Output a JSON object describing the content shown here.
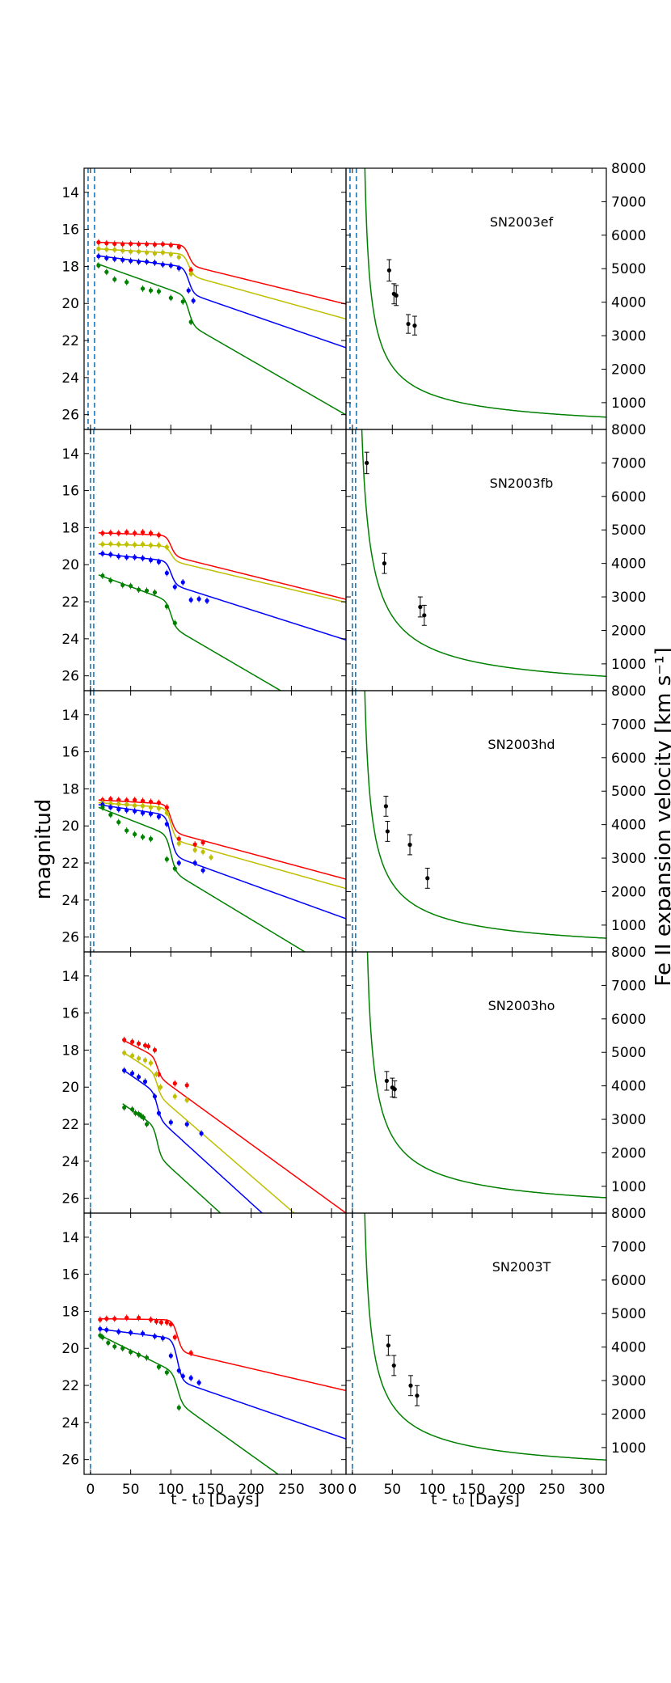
{
  "figure": {
    "y_left_label": "magnitud",
    "y_right_label": "Fe II expansion velocity [km s⁻¹]",
    "x_label_left": "t - t₀ [Days]",
    "x_label_right": "t - t₀ [Days]"
  },
  "chart_data": {
    "type": "line",
    "x_ticks": [
      0,
      50,
      100,
      150,
      200,
      250,
      300
    ],
    "x_range": [
      -8,
      318
    ],
    "mag_ticks": [
      14,
      16,
      18,
      20,
      22,
      24,
      26
    ],
    "mag_range": [
      12.7,
      26.8
    ],
    "vel_ticks": [
      1000,
      2000,
      3000,
      4000,
      5000,
      6000,
      7000,
      8000
    ],
    "vel_range": [
      200,
      8000
    ],
    "colors": {
      "B": "#008000",
      "V": "#0000ff",
      "R": "#bfbf00",
      "I": "#ff0000",
      "vel": "#008000",
      "tline": "#1f77b4"
    },
    "panels": [
      {
        "name": "SN2003ef",
        "tlines": [
          -3,
          5
        ],
        "lc_models": [
          {
            "band": "I",
            "start": 8,
            "m0": 16.7,
            "slope1": 0.0012,
            "tp": 122,
            "drop": 1.1,
            "w": 3,
            "slope2": 0.0095
          },
          {
            "band": "R",
            "start": 8,
            "m0": 17.05,
            "slope1": 0.0025,
            "tp": 122,
            "drop": 1.15,
            "w": 3,
            "slope2": 0.0095
          },
          {
            "band": "V",
            "start": 8,
            "m0": 17.42,
            "slope1": 0.0055,
            "tp": 122,
            "drop": 1.4,
            "w": 3,
            "slope2": 0.0095
          },
          {
            "band": "B",
            "start": 8,
            "m0": 17.85,
            "slope1": 0.0155,
            "tp": 122,
            "drop": 1.5,
            "w": 3,
            "slope2": 0.0095
          }
        ],
        "lc_points": [
          {
            "band": "I",
            "t": [
              10,
              20,
              30,
              40,
              50,
              60,
              70,
              80,
              90,
              100,
              110,
              125
            ],
            "mag": [
              16.7,
              16.75,
              16.78,
              16.8,
              16.78,
              16.8,
              16.8,
              16.82,
              16.8,
              16.85,
              16.95,
              18.2
            ]
          },
          {
            "band": "R",
            "t": [
              10,
              20,
              30,
              40,
              50,
              60,
              70,
              80,
              90,
              100,
              110,
              125
            ],
            "mag": [
              17.05,
              17.08,
              17.1,
              17.15,
              17.2,
              17.2,
              17.25,
              17.3,
              17.25,
              17.35,
              17.5,
              18.4
            ]
          },
          {
            "band": "V",
            "t": [
              10,
              20,
              30,
              40,
              50,
              60,
              70,
              80,
              90,
              100,
              110,
              122,
              128
            ],
            "mag": [
              17.45,
              17.55,
              17.6,
              17.65,
              17.7,
              17.75,
              17.75,
              17.8,
              17.9,
              17.95,
              18.1,
              19.3,
              19.85
            ]
          },
          {
            "band": "B",
            "t": [
              10,
              20,
              30,
              45,
              65,
              75,
              85,
              100,
              115,
              125
            ],
            "mag": [
              17.95,
              18.3,
              18.7,
              18.85,
              19.2,
              19.3,
              19.35,
              19.7,
              19.9,
              21.0
            ]
          }
        ],
        "vel_model": {
          "A": 10800,
          "n": 0.63,
          "t0": 11
        },
        "vel_points": {
          "t": [
            46,
            52,
            55,
            70,
            78
          ],
          "v": [
            4950,
            4250,
            4200,
            3350,
            3300
          ],
          "err": [
            320,
            300,
            300,
            280,
            280
          ]
        }
      },
      {
        "name": "SN2003fb",
        "tlines": [
          0,
          4
        ],
        "lc_models": [
          {
            "band": "I",
            "start": 10,
            "m0": 18.28,
            "slope1": 0.0015,
            "tp": 100,
            "drop": 1.1,
            "w": 3,
            "slope2": 0.0093
          },
          {
            "band": "R",
            "start": 10,
            "m0": 18.9,
            "slope1": 0.001,
            "tp": 100,
            "drop": 0.8,
            "w": 3,
            "slope2": 0.0093
          },
          {
            "band": "V",
            "start": 10,
            "m0": 19.4,
            "slope1": 0.0045,
            "tp": 100,
            "drop": 1.25,
            "w": 3,
            "slope2": 0.0093
          },
          {
            "band": "B",
            "start": 10,
            "m0": 20.55,
            "slope1": 0.016,
            "tp": 100,
            "drop": 1.35,
            "w": 3,
            "slope2": 0.0093
          }
        ],
        "lc_points": [
          {
            "band": "I",
            "t": [
              15,
              25,
              35,
              45,
              55,
              65,
              75,
              85
            ],
            "mag": [
              18.3,
              18.28,
              18.3,
              18.25,
              18.3,
              18.25,
              18.3,
              18.4
            ]
          },
          {
            "band": "R",
            "t": [
              15,
              25,
              35,
              45,
              55,
              65,
              75,
              85,
              95
            ],
            "mag": [
              18.9,
              18.88,
              18.9,
              18.9,
              18.92,
              18.9,
              18.95,
              18.95,
              19.05
            ]
          },
          {
            "band": "V",
            "t": [
              15,
              25,
              35,
              45,
              55,
              65,
              75,
              85,
              95,
              105,
              115,
              125,
              135,
              145
            ],
            "mag": [
              19.4,
              19.45,
              19.55,
              19.6,
              19.6,
              19.65,
              19.75,
              19.85,
              20.45,
              21.2,
              20.95,
              21.9,
              21.85,
              21.95
            ]
          },
          {
            "band": "B",
            "t": [
              15,
              25,
              40,
              50,
              60,
              70,
              80,
              95,
              105
            ],
            "mag": [
              20.6,
              20.85,
              21.1,
              21.15,
              21.35,
              21.4,
              21.5,
              22.25,
              23.15
            ]
          }
        ],
        "vel_model": {
          "A": 16000,
          "n": 0.71,
          "t0": 3
        },
        "vel_points": {
          "t": [
            18,
            40,
            85,
            90
          ],
          "v": [
            7000,
            4000,
            2700,
            2450
          ],
          "err": [
            320,
            300,
            300,
            300
          ]
        }
      },
      {
        "name": "SN2003hd",
        "tlines": [
          0,
          4
        ],
        "lc_models": [
          {
            "band": "I",
            "start": 10,
            "m0": 18.6,
            "slope1": 0.0025,
            "tp": 100,
            "drop": 1.5,
            "w": 3,
            "slope2": 0.0092
          },
          {
            "band": "R",
            "start": 10,
            "m0": 18.75,
            "slope1": 0.003,
            "tp": 100,
            "drop": 1.7,
            "w": 3,
            "slope2": 0.0092
          },
          {
            "band": "V",
            "start": 10,
            "m0": 18.85,
            "slope1": 0.0065,
            "tp": 100,
            "drop": 2.15,
            "w": 3,
            "slope2": 0.0092
          },
          {
            "band": "B",
            "start": 10,
            "m0": 19.0,
            "slope1": 0.017,
            "tp": 100,
            "drop": 1.9,
            "w": 3,
            "slope2": 0.0092
          }
        ],
        "lc_points": [
          {
            "band": "I",
            "t": [
              15,
              25,
              35,
              45,
              55,
              65,
              75,
              85,
              95,
              110,
              130,
              140
            ],
            "mag": [
              18.6,
              18.55,
              18.6,
              18.62,
              18.6,
              18.65,
              18.7,
              18.75,
              19.0,
              20.7,
              21.0,
              20.9
            ]
          },
          {
            "band": "R",
            "t": [
              15,
              25,
              35,
              45,
              55,
              65,
              75,
              85,
              95,
              110,
              130,
              140,
              150
            ],
            "mag": [
              18.75,
              18.8,
              18.82,
              18.85,
              18.9,
              18.92,
              19.0,
              19.05,
              19.3,
              20.95,
              21.3,
              21.4,
              21.7
            ]
          },
          {
            "band": "V",
            "t": [
              15,
              25,
              35,
              45,
              55,
              65,
              75,
              85,
              95,
              110,
              130,
              140
            ],
            "mag": [
              18.85,
              19.0,
              19.1,
              19.15,
              19.2,
              19.3,
              19.35,
              19.5,
              19.9,
              22.0,
              22.0,
              22.4
            ]
          },
          {
            "band": "B",
            "t": [
              15,
              25,
              35,
              45,
              55,
              65,
              75,
              95,
              105
            ],
            "mag": [
              19.0,
              19.4,
              19.8,
              20.25,
              20.45,
              20.6,
              20.7,
              21.8,
              22.3
            ]
          }
        ],
        "vel_model": {
          "A": 12000,
          "n": 0.64,
          "t0": 10
        },
        "vel_points": {
          "t": [
            42,
            44,
            72,
            94
          ],
          "v": [
            4550,
            3800,
            3400,
            2400
          ],
          "err": [
            300,
            300,
            300,
            300
          ]
        }
      },
      {
        "name": "SN2003ho",
        "tlines": [
          0
        ],
        "lc_models": [
          {
            "band": "I",
            "start": 40,
            "m0": 17.45,
            "slope1": 0.022,
            "tp": 83,
            "drop": 1.0,
            "w": 2.5,
            "slope2": 0.0095
          },
          {
            "band": "R",
            "start": 40,
            "m0": 18.1,
            "slope1": 0.028,
            "tp": 83,
            "drop": 1.1,
            "w": 2.5,
            "slope2": 0.0095
          },
          {
            "band": "V",
            "start": 40,
            "m0": 19.05,
            "slope1": 0.03,
            "tp": 83,
            "drop": 1.3,
            "w": 2.5,
            "slope2": 0.0095
          },
          {
            "band": "B",
            "start": 40,
            "m0": 20.9,
            "slope1": 0.03,
            "tp": 83,
            "drop": 1.5,
            "w": 2.5,
            "slope2": 0.0095
          }
        ],
        "lc_points": [
          {
            "band": "I",
            "t": [
              42,
              52,
              60,
              68,
              72,
              80,
              85,
              105,
              120
            ],
            "mag": [
              17.45,
              17.55,
              17.65,
              17.75,
              17.8,
              18.0,
              19.3,
              19.8,
              19.9
            ]
          },
          {
            "band": "R",
            "t": [
              42,
              52,
              60,
              68,
              75,
              82,
              87,
              105,
              120
            ],
            "mag": [
              18.15,
              18.3,
              18.45,
              18.55,
              18.7,
              19.3,
              20.0,
              20.5,
              20.7
            ]
          },
          {
            "band": "V",
            "t": [
              42,
              52,
              60,
              68,
              80,
              85,
              100,
              120,
              138
            ],
            "mag": [
              19.1,
              19.25,
              19.45,
              19.7,
              20.5,
              21.4,
              21.9,
              22.0,
              22.5
            ]
          },
          {
            "band": "B",
            "t": [
              42,
              52,
              56,
              60,
              63,
              66,
              70
            ],
            "mag": [
              21.1,
              21.2,
              21.4,
              21.45,
              21.55,
              21.65,
              22.0
            ]
          }
        ],
        "vel_model": {
          "A": 12500,
          "n": 0.63,
          "t0": 13
        },
        "vel_points": {
          "t": [
            43,
            50,
            53
          ],
          "v": [
            4150,
            3950,
            3900
          ],
          "err": [
            280,
            280,
            250
          ]
        }
      },
      {
        "name": "SN2003T",
        "tlines": [
          0
        ],
        "lc_models": [
          {
            "band": "I",
            "start": 10,
            "m0": 18.4,
            "slope1": 0.0006,
            "tp": 108,
            "drop": 1.7,
            "w": 3,
            "slope2": 0.0095
          },
          {
            "band": "V",
            "start": 10,
            "m0": 18.95,
            "slope1": 0.0055,
            "tp": 108,
            "drop": 2.25,
            "w": 3,
            "slope2": 0.0095
          },
          {
            "band": "B",
            "start": 10,
            "m0": 19.25,
            "slope1": 0.0215,
            "tp": 108,
            "drop": 1.55,
            "w": 3,
            "slope2": 0.0095
          }
        ],
        "lc_points": [
          {
            "band": "I",
            "t": [
              12,
              20,
              30,
              45,
              60,
              75,
              82,
              88,
              95,
              100,
              105,
              125
            ],
            "mag": [
              18.45,
              18.4,
              18.4,
              18.35,
              18.35,
              18.45,
              18.55,
              18.6,
              18.6,
              18.7,
              19.4,
              20.25
            ]
          },
          {
            "band": "V",
            "t": [
              12,
              20,
              35,
              50,
              65,
              80,
              90,
              100,
              110,
              115,
              125,
              135
            ],
            "mag": [
              18.95,
              19.0,
              19.1,
              19.15,
              19.2,
              19.35,
              19.45,
              20.4,
              21.2,
              21.5,
              21.6,
              21.85
            ]
          },
          {
            "band": "B",
            "t": [
              12,
              15,
              22,
              30,
              40,
              50,
              60,
              70,
              85,
              95,
              110
            ],
            "mag": [
              19.3,
              19.4,
              19.7,
              19.9,
              20.0,
              20.2,
              20.35,
              20.5,
              21.0,
              21.3,
              23.2
            ]
          }
        ],
        "vel_model": {
          "A": 12000,
          "n": 0.63,
          "t0": 10
        },
        "vel_points": {
          "t": [
            45,
            52,
            73,
            81
          ],
          "v": [
            4050,
            3450,
            2850,
            2550
          ],
          "err": [
            300,
            300,
            300,
            300
          ]
        }
      }
    ]
  }
}
